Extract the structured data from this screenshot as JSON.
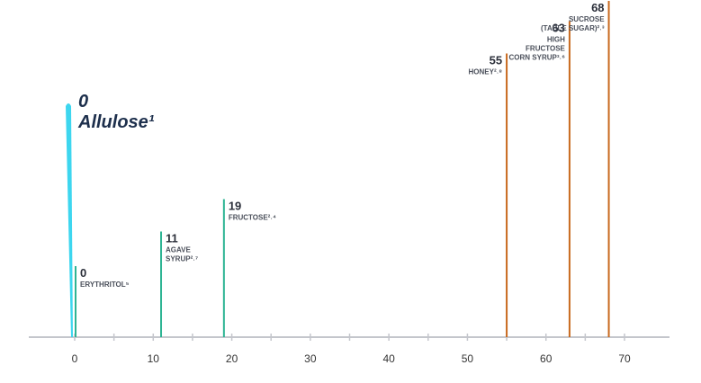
{
  "chart_data": {
    "type": "bar",
    "xlim": [
      0,
      70
    ],
    "x_ticks": [
      0,
      10,
      20,
      30,
      40,
      50,
      60,
      70
    ],
    "colors": {
      "axis": "#c4c6cc",
      "allulose": "#3dd6ef",
      "low": "#2db493",
      "high": "#c8691e"
    },
    "items": [
      {
        "id": "allulose",
        "value": 0,
        "value_label": "0",
        "label": [
          "Allulose¹"
        ],
        "style": "highlight",
        "color": "#3dd6ef"
      },
      {
        "id": "erythritol",
        "value": 0,
        "value_label": "0",
        "label": [
          "ERYTHRITOL⁵"
        ],
        "style": "low",
        "color": "#2db493"
      },
      {
        "id": "agave",
        "value": 11,
        "value_label": "11",
        "label": [
          "AGAVE",
          "SYRUP²˒⁷"
        ],
        "style": "low",
        "color": "#2db493"
      },
      {
        "id": "fructose",
        "value": 19,
        "value_label": "19",
        "label": [
          "FRUCTOSE²˒⁴"
        ],
        "style": "low",
        "color": "#2db493"
      },
      {
        "id": "honey",
        "value": 55,
        "value_label": "55",
        "label": [
          "HONEY²˒⁸"
        ],
        "style": "high",
        "color": "#c8691e",
        "label_side": "left"
      },
      {
        "id": "hfcs",
        "value": 63,
        "value_label": "63",
        "label": [
          "HIGH",
          "FRUCTOSE",
          "CORN SYRUP³˒⁶"
        ],
        "style": "high",
        "color": "#c8691e",
        "label_side": "left"
      },
      {
        "id": "sucrose",
        "value": 68,
        "value_label": "68",
        "label": [
          "SUCROSE",
          "(TABLE SUGAR)²˒³"
        ],
        "style": "high",
        "color": "#c8691e",
        "label_side": "left"
      }
    ]
  }
}
